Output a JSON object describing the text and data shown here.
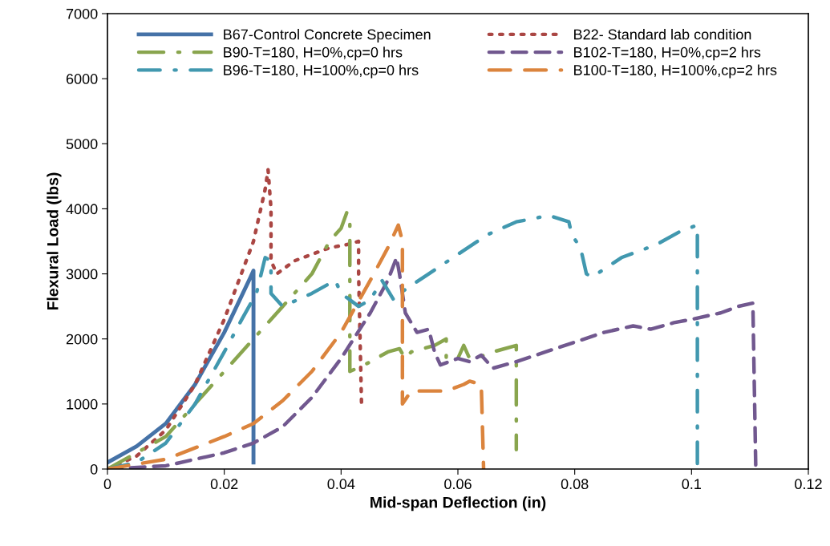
{
  "chart_data": {
    "type": "line",
    "xlabel": "Mid-span Deflection (in)",
    "ylabel": "Flexural Load (lbs)",
    "xlim": [
      0,
      0.12
    ],
    "xticks": [
      0,
      0.02,
      0.04,
      0.06,
      0.08,
      0.1,
      0.12
    ],
    "ylim": [
      0,
      7000
    ],
    "yticks": [
      0,
      1000,
      2000,
      3000,
      4000,
      5000,
      6000,
      7000
    ],
    "grid": false,
    "legend": "top",
    "marker": "none",
    "series": [
      {
        "name": "B67-Control Concrete Specimen",
        "color": "#4572a7",
        "line_style": "solid",
        "x": [
          0,
          0.005,
          0.01,
          0.015,
          0.02,
          0.0245,
          0.025,
          0.025
        ],
        "values": [
          100,
          350,
          700,
          1300,
          2100,
          2950,
          3050,
          100
        ]
      },
      {
        "name": "B22- Standard lab condition",
        "color": "#aa4643",
        "line_style": "dotted",
        "x": [
          0,
          0.005,
          0.01,
          0.015,
          0.02,
          0.025,
          0.027,
          0.0275,
          0.028,
          0.028,
          0.029,
          0.032,
          0.035,
          0.038,
          0.041,
          0.043,
          0.043,
          0.0435
        ],
        "values": [
          0,
          200,
          600,
          1300,
          2300,
          3500,
          4300,
          4600,
          4000,
          3200,
          3000,
          3200,
          3300,
          3400,
          3450,
          3500,
          3000,
          1000
        ]
      },
      {
        "name": "B90-T=180, H=0%,cp=0 hrs",
        "color": "#89a54e",
        "line_style": "longdashdot",
        "x": [
          0,
          0.01,
          0.015,
          0.02,
          0.025,
          0.03,
          0.035,
          0.038,
          0.04,
          0.041,
          0.0415,
          0.0415,
          0.044,
          0.048,
          0.05,
          0.051,
          0.052,
          0.056,
          0.058,
          0.058,
          0.06,
          0.061,
          0.062,
          0.063,
          0.066,
          0.07,
          0.07,
          0.07
        ],
        "values": [
          0,
          500,
          1000,
          1500,
          2000,
          2500,
          3000,
          3500,
          3700,
          3950,
          3900,
          1500,
          1600,
          1800,
          1850,
          1700,
          1800,
          1900,
          2000,
          1700,
          1700,
          1900,
          1700,
          1700,
          1800,
          1900,
          1600,
          300
        ]
      },
      {
        "name": "B102-T=180, H=0%,cp=2 hrs",
        "color": "#71588f",
        "line_style": "dashed",
        "x": [
          0,
          0.01,
          0.02,
          0.025,
          0.03,
          0.035,
          0.04,
          0.045,
          0.048,
          0.0495,
          0.05,
          0.051,
          0.053,
          0.055,
          0.056,
          0.057,
          0.06,
          0.062,
          0.064,
          0.066,
          0.068,
          0.07,
          0.075,
          0.08,
          0.085,
          0.09,
          0.093,
          0.097,
          0.1,
          0.105,
          0.108,
          0.1105,
          0.111
        ],
        "values": [
          0,
          50,
          250,
          400,
          650,
          1100,
          1700,
          2400,
          2900,
          3250,
          3000,
          2400,
          2100,
          2150,
          1800,
          1600,
          1700,
          1650,
          1750,
          1550,
          1600,
          1650,
          1800,
          1950,
          2100,
          2200,
          2150,
          2250,
          2300,
          2400,
          2500,
          2550,
          0
        ]
      },
      {
        "name": "B96-T=180, H=100%,cp=0 hrs",
        "color": "#4198af",
        "line_style": "dashdot",
        "x": [
          0,
          0.005,
          0.01,
          0.015,
          0.02,
          0.023,
          0.0255,
          0.027,
          0.028,
          0.028,
          0.03,
          0.035,
          0.039,
          0.04,
          0.043,
          0.045,
          0.047,
          0.049,
          0.05,
          0.055,
          0.06,
          0.065,
          0.07,
          0.073,
          0.0755,
          0.079,
          0.0795,
          0.081,
          0.082,
          0.083,
          0.088,
          0.094,
          0.098,
          0.101,
          0.101
        ],
        "values": [
          0,
          100,
          400,
          1000,
          1800,
          2300,
          2700,
          3250,
          3200,
          2700,
          2500,
          2700,
          2900,
          2700,
          2500,
          2600,
          2900,
          2600,
          2700,
          3000,
          3300,
          3600,
          3800,
          3850,
          3900,
          3800,
          3600,
          3400,
          3000,
          2950,
          3250,
          3450,
          3650,
          3750,
          0
        ]
      },
      {
        "name": "B100-T=180, H=100%,cp=2 hrs",
        "color": "#db843d",
        "line_style": "longdash",
        "x": [
          0,
          0.01,
          0.02,
          0.025,
          0.03,
          0.035,
          0.04,
          0.045,
          0.048,
          0.0498,
          0.0505,
          0.0505,
          0.052,
          0.056,
          0.058,
          0.061,
          0.062,
          0.064,
          0.0644
        ],
        "values": [
          0,
          150,
          500,
          700,
          1050,
          1500,
          2100,
          2900,
          3400,
          3750,
          3500,
          1000,
          1200,
          1200,
          1200,
          1300,
          1350,
          1300,
          0
        ]
      }
    ]
  }
}
